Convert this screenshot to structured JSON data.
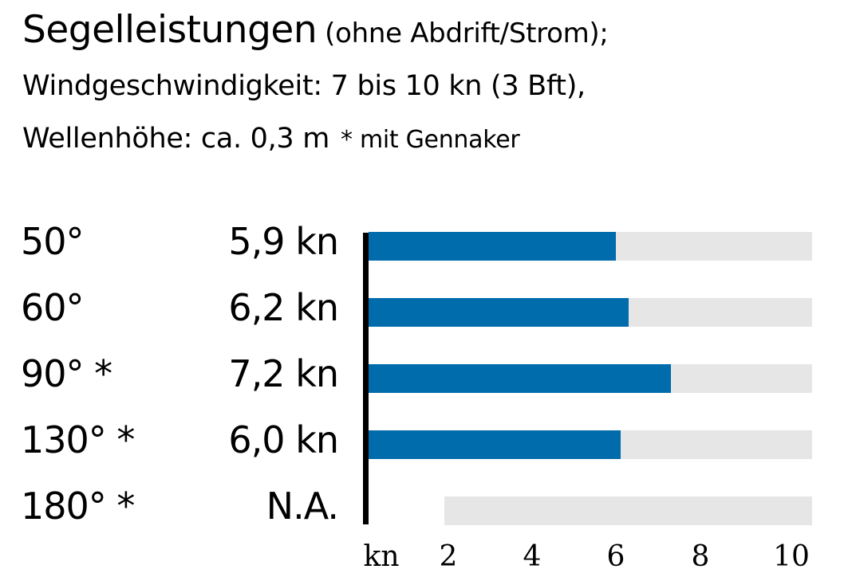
{
  "title": {
    "main": "Segelleistungen",
    "qualifier": "(ohne Abdrift/Strom);",
    "line2": "Windgeschwindigkeit: 7 bis 10 kn (3 Bft),",
    "line3": "Wellenhöhe: ca. 0,3 m",
    "footnote": "* mit Gennaker"
  },
  "rows": [
    {
      "angle": "50°",
      "value_label": "5,9 kn"
    },
    {
      "angle": "60°",
      "value_label": "6,2 kn"
    },
    {
      "angle": "90° *",
      "value_label": "7,2 kn"
    },
    {
      "angle": "130° *",
      "value_label": "6,0 kn"
    },
    {
      "angle": "180° *",
      "value_label": "N.A."
    }
  ],
  "axis": {
    "unit_label": "kn",
    "ticks": [
      "2",
      "4",
      "6",
      "8",
      "10"
    ]
  },
  "colors": {
    "bar": "#006cab",
    "track": "#e6e6e6",
    "axis": "#000000"
  },
  "chart_data": {
    "type": "bar",
    "orientation": "horizontal",
    "title": "Segelleistungen (ohne Abdrift/Strom); Windgeschwindigkeit: 7 bis 10 kn (3 Bft), Wellenhöhe: ca. 0,3 m",
    "annotation": "* mit Gennaker",
    "categories": [
      "50°",
      "60°",
      "90° *",
      "130° *",
      "180° *"
    ],
    "values": [
      5.9,
      6.2,
      7.2,
      6.0,
      null
    ],
    "value_labels": [
      "5,9 kn",
      "6,2 kn",
      "7,2 kn",
      "6,0 kn",
      "N.A."
    ],
    "xlabel": "kn",
    "ylabel": "",
    "xticks": [
      2,
      4,
      6,
      8,
      10
    ],
    "xlim": [
      0,
      10
    ],
    "grid": false,
    "legend": null
  }
}
